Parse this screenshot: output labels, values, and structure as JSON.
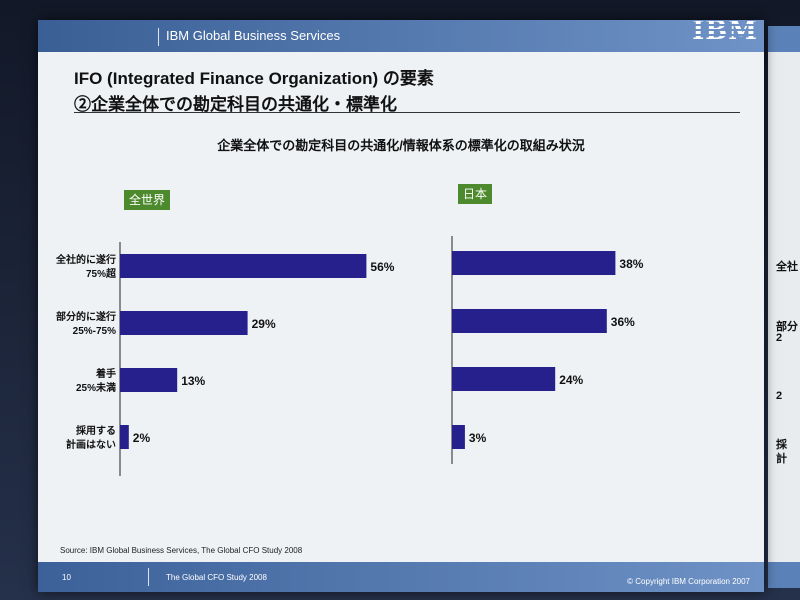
{
  "header": {
    "brand": "IBM Global Business Services",
    "logo": "IBM"
  },
  "title": {
    "line1": "IFO (Integrated Finance Organization) の要素",
    "line2": "②企業全体での勘定科目の共通化・標準化"
  },
  "subtitle": "企業全体での勘定科目の共通化/情報体系の標準化の取組み状況",
  "source": "Source: IBM Global Business Services, The Global CFO Study 2008",
  "footer": {
    "page_number": "10",
    "study": "The Global CFO Study 2008",
    "copyright": "© Copyright IBM Corporation 2007"
  },
  "colors": {
    "bar": "#25208c",
    "tag": "#4d8a2e",
    "header": "#4a72ab"
  },
  "next_slide_labels": [
    "全社",
    "部分",
    "2",
    "2",
    "採",
    "計"
  ],
  "chart_data": [
    {
      "type": "bar",
      "orientation": "horizontal",
      "panel_label": "全世界",
      "categories": [
        [
          "全社的に遂行",
          "75%超"
        ],
        [
          "部分的に遂行",
          "25%-75%"
        ],
        [
          "着手",
          "25%未満"
        ],
        [
          "採用する",
          "計画はない"
        ]
      ],
      "values": [
        56,
        29,
        13,
        2
      ],
      "value_labels": [
        "56%",
        "29%",
        "13%",
        "2%"
      ],
      "unit": "%",
      "xlim": [
        0,
        60
      ],
      "grid": false
    },
    {
      "type": "bar",
      "orientation": "horizontal",
      "panel_label": "日本",
      "categories": [
        [
          "全社的に遂行",
          "75%超"
        ],
        [
          "部分的に遂行",
          "25%-75%"
        ],
        [
          "着手",
          "25%未満"
        ],
        [
          "採用する",
          "計画はない"
        ]
      ],
      "values": [
        38,
        36,
        24,
        3
      ],
      "value_labels": [
        "38%",
        "36%",
        "24%",
        "3%"
      ],
      "unit": "%",
      "xlim": [
        0,
        60
      ],
      "grid": false
    }
  ]
}
